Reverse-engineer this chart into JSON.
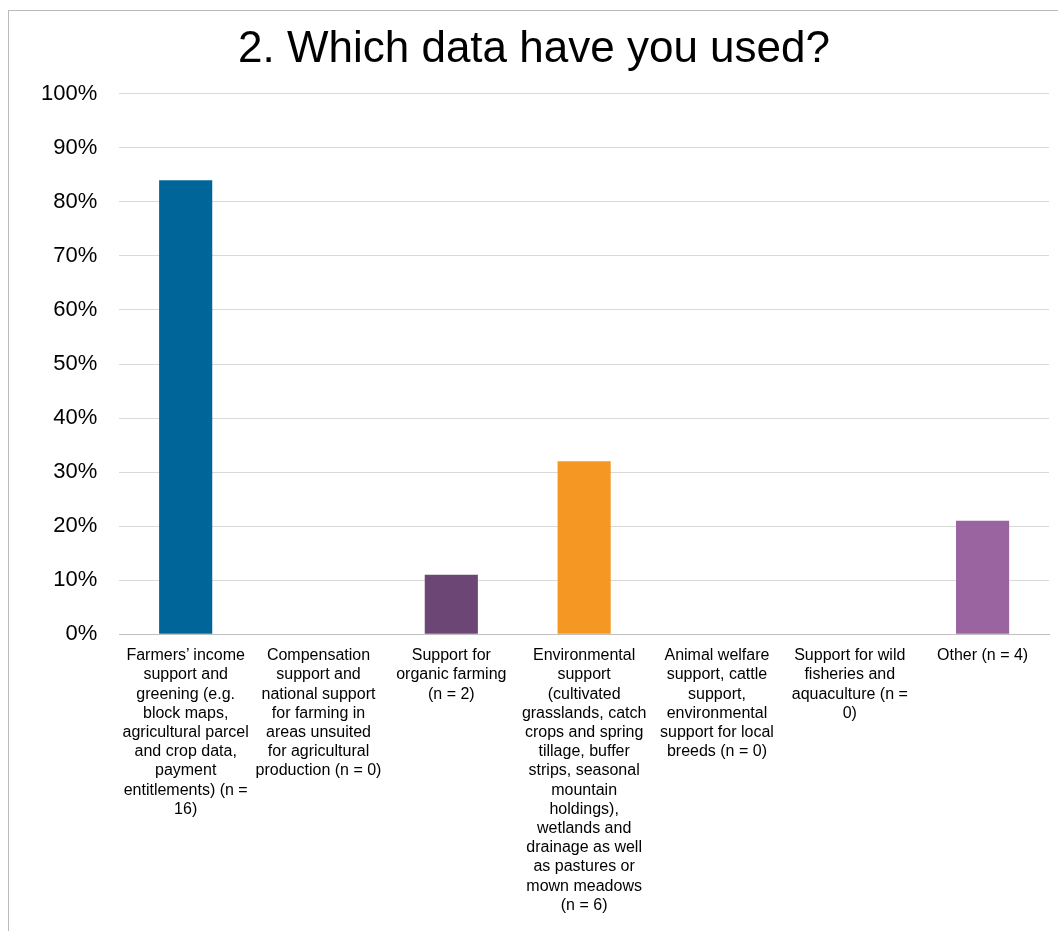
{
  "chart_data": {
    "type": "bar",
    "title": "2. Which data have you used?",
    "categories": [
      "Farmers’ income support and greening (e.g. block maps, agricultural parcel and crop data, payment entitlements) (n = 16)",
      "Compensation support and national support for farming in areas unsuited for agricultural production (n = 0)",
      "Support for organic farming (n = 2)",
      "Environmental support (cultivated grasslands, catch crops and spring tillage, buffer strips, seasonal mountain holdings), wetlands and drainage as well as pastures or mown meadows (n = 6)",
      "Animal welfare support, cattle support, environmental support for local breeds (n = 0)",
      "Support for wild fisheries and aquaculture (n = 0)",
      "Other (n = 4)"
    ],
    "values": [
      84,
      0,
      11,
      32,
      0,
      0,
      21
    ],
    "colors": [
      "#006699",
      "#006699",
      "#6c4675",
      "#f59823",
      "#006699",
      "#006699",
      "#9a64a0"
    ],
    "ylim": [
      0,
      100
    ],
    "yticks": [
      {
        "value": 0,
        "label": "0%"
      },
      {
        "value": 10,
        "label": "10%"
      },
      {
        "value": 20,
        "label": "20%"
      },
      {
        "value": 30,
        "label": "30%"
      },
      {
        "value": 40,
        "label": "40%"
      },
      {
        "value": 50,
        "label": "50%"
      },
      {
        "value": 60,
        "label": "60%"
      },
      {
        "value": 70,
        "label": "70%"
      },
      {
        "value": 80,
        "label": "80%"
      },
      {
        "value": 90,
        "label": "90%"
      },
      {
        "value": 100,
        "label": "100%"
      }
    ],
    "grid": "y",
    "legend": false
  }
}
